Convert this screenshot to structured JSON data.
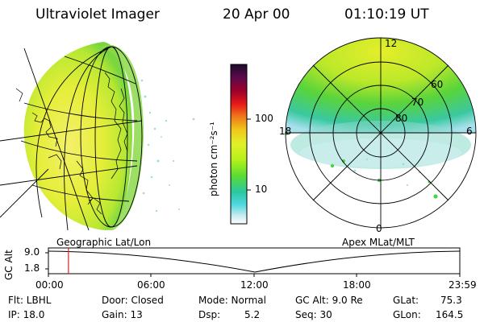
{
  "header": {
    "instrument": "Ultraviolet Imager",
    "date": "20 Apr 00",
    "time": "01:10:19 UT"
  },
  "colorbar": {
    "unit_label": "photon cm⁻²s⁻¹",
    "ticks": [
      "100",
      "10"
    ],
    "colors": [
      "#1a0a2a",
      "#5a0a4a",
      "#a0002a",
      "#e81a1a",
      "#f07a1a",
      "#f0c81a",
      "#e0f02a",
      "#b4f01a",
      "#5adc32",
      "#2ac8a0",
      "#50d8e0",
      "#c8ecf0",
      "#ffffff"
    ]
  },
  "polar_plot": {
    "mlt_labels": {
      "top": "12",
      "left": "18",
      "right": "6",
      "bottom": "0"
    },
    "lat_labels": [
      "60",
      "70",
      "80"
    ]
  },
  "timeline": {
    "ylabel": "GC Alt",
    "y_ticks": [
      "9.0",
      "1.8"
    ],
    "left_caption": "Geographic Lat/Lon",
    "right_caption": "Apex MLat/MLT",
    "x_ticks": [
      "00:00",
      "06:00",
      "12:00",
      "18:00",
      "23:59"
    ],
    "marker_time_hours": 1.17
  },
  "info": {
    "filter": "Flt: LBHL",
    "ip": "IP: 18.0",
    "door": "Door: Closed",
    "gain": "Gain: 13",
    "mode": "Mode: Normal",
    "dsp_label": "Dsp:",
    "dsp_value": "5.2",
    "gc_alt": "GC Alt: 9.0 Re",
    "seq": "Seq: 30",
    "glat_label": "GLat:",
    "glat_value": "75.3",
    "glon_label": "GLon:",
    "glon_value": "164.5"
  }
}
